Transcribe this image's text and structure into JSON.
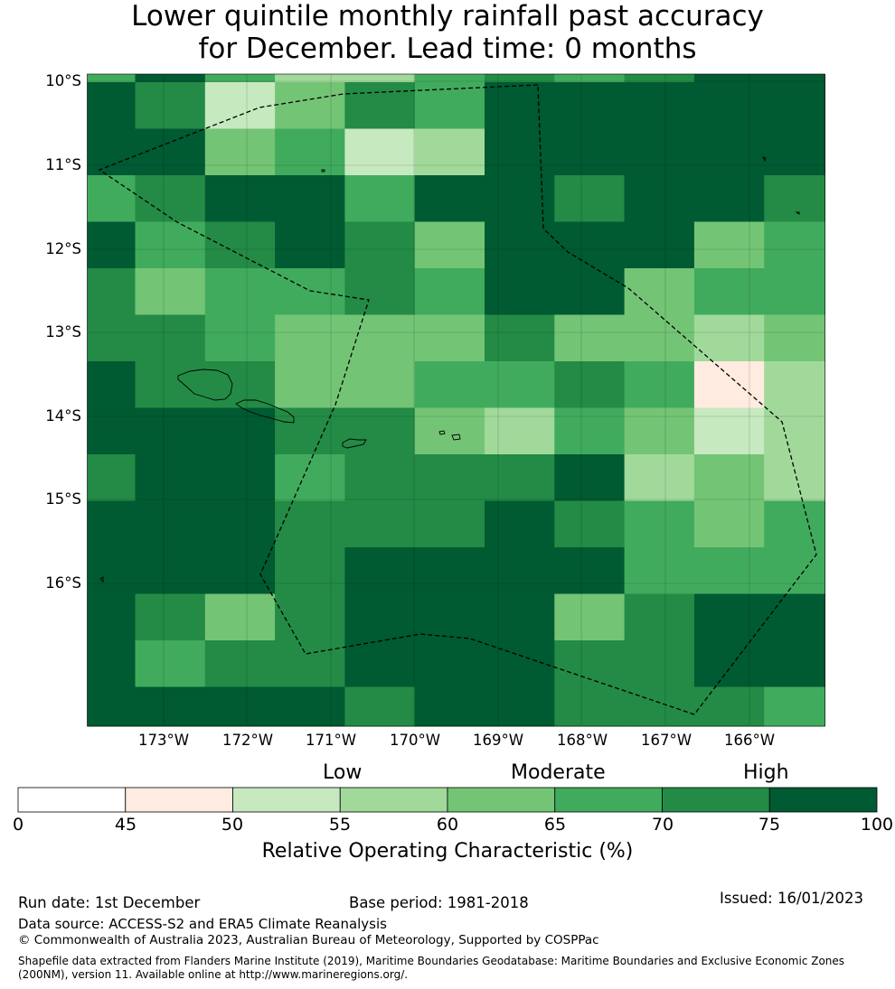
{
  "title": {
    "line1": "Lower quintile monthly rainfall past accuracy",
    "line2": "for December. Lead time: 0 months"
  },
  "map": {
    "lat_labels": [
      "10°S",
      "11°S",
      "12°S",
      "13°S",
      "14°S",
      "15°S",
      "16°S"
    ],
    "lon_labels": [
      "173°W",
      "172°W",
      "171°W",
      "170°W",
      "169°W",
      "168°W",
      "167°W",
      "166°W"
    ],
    "grid_values": [
      [
        65,
        80,
        65,
        55,
        55,
        65,
        70,
        65,
        70,
        80,
        80
      ],
      [
        80,
        72,
        53,
        62,
        72,
        67,
        80,
        80,
        80,
        80,
        80
      ],
      [
        80,
        80,
        62,
        67,
        53,
        58,
        80,
        80,
        80,
        80,
        80
      ],
      [
        67,
        72,
        80,
        80,
        67,
        80,
        80,
        72,
        80,
        80,
        72
      ],
      [
        80,
        67,
        72,
        80,
        72,
        62,
        80,
        80,
        80,
        62,
        67
      ],
      [
        72,
        62,
        67,
        67,
        72,
        67,
        80,
        80,
        62,
        67,
        67
      ],
      [
        72,
        72,
        67,
        62,
        62,
        62,
        72,
        62,
        62,
        58,
        62
      ],
      [
        80,
        72,
        72,
        62,
        62,
        67,
        67,
        72,
        67,
        48,
        58
      ],
      [
        80,
        80,
        80,
        72,
        72,
        62,
        58,
        67,
        62,
        53,
        58
      ],
      [
        72,
        80,
        80,
        67,
        72,
        72,
        72,
        80,
        58,
        62,
        58
      ],
      [
        80,
        80,
        80,
        72,
        72,
        72,
        80,
        72,
        67,
        62,
        67
      ],
      [
        80,
        80,
        80,
        72,
        80,
        80,
        80,
        80,
        67,
        67,
        67
      ],
      [
        80,
        72,
        62,
        72,
        80,
        80,
        80,
        62,
        72,
        80,
        80
      ],
      [
        80,
        67,
        72,
        72,
        80,
        80,
        80,
        72,
        72,
        80,
        80
      ],
      [
        80,
        80,
        80,
        80,
        72,
        80,
        80,
        72,
        72,
        72,
        67
      ]
    ]
  },
  "colorbar": {
    "bounds": [
      0,
      45,
      50,
      55,
      60,
      65,
      70,
      75,
      100
    ],
    "colors": [
      "#ffffff",
      "#ffebe0",
      "#c7e9c0",
      "#a1d99b",
      "#74c476",
      "#41ab5d",
      "#238b45",
      "#005a32"
    ],
    "tick_labels": [
      "0",
      "45",
      "50",
      "55",
      "60",
      "65",
      "70",
      "75",
      "100"
    ],
    "categories": {
      "low": "Low",
      "moderate": "Moderate",
      "high": "High"
    },
    "label": "Relative Operating Characteristic (%)"
  },
  "footer": {
    "run_date": "Run date: 1st December",
    "base_period": "Base period: 1981-2018",
    "issued": "Issued: 16/01/2023",
    "data_source": "Data source: ACCESS-S2 and ERA5 Climate Reanalysis",
    "copyright": "© Commonwealth of Australia 2023, Australian Bureau of Meteorology, Supported by COSPPac",
    "shapefile": "Shapefile data extracted from Flanders Marine Institute (2019), Maritime Boundaries Geodatabase: Maritime Boundaries and Exclusive Economic Zones (200NM), version 11. Available online at http://www.marineregions.org/."
  }
}
